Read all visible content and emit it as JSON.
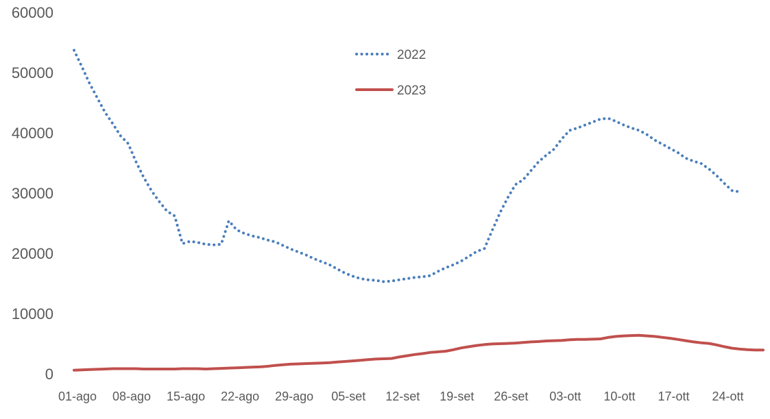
{
  "chart_data": {
    "type": "line",
    "title": "",
    "xlabel": "",
    "ylabel": "",
    "ylim": [
      0,
      60000
    ],
    "yticks": [
      "0",
      "10000",
      "20000",
      "30000",
      "40000",
      "50000",
      "60000"
    ],
    "xticks": [
      "01-ago",
      "08-ago",
      "15-ago",
      "22-ago",
      "29-ago",
      "05-set",
      "12-set",
      "19-set",
      "26-set",
      "03-ott",
      "10-ott",
      "17-ott",
      "24-ott"
    ],
    "grid": false,
    "legend_position": "top-center",
    "x_day_count": 90,
    "series": [
      {
        "name": "2022",
        "style": "dotted",
        "color": "#4a7ebb",
        "values": [
          53700,
          51000,
          48200,
          45800,
          43400,
          41500,
          39500,
          38200,
          35200,
          32600,
          30400,
          28600,
          27000,
          26200,
          21600,
          22000,
          21800,
          21500,
          21400,
          21500,
          25400,
          23900,
          23300,
          22900,
          22600,
          22200,
          21900,
          21300,
          20700,
          20200,
          19700,
          19100,
          18600,
          18100,
          17400,
          16700,
          16200,
          15800,
          15600,
          15500,
          15300,
          15400,
          15600,
          15800,
          16000,
          16100,
          16300,
          17000,
          17600,
          18100,
          18700,
          19500,
          20300,
          20800,
          23800,
          26700,
          29200,
          31400,
          32200,
          33700,
          35200,
          36300,
          37300,
          39000,
          40400,
          40800,
          41300,
          41800,
          42300,
          42400,
          41900,
          41300,
          40800,
          40400,
          39700,
          38800,
          38100,
          37400,
          36700,
          35800,
          35300,
          34900,
          34000,
          32900,
          31600,
          30400,
          30200,
          30200,
          30200,
          30200
        ],
        "plot_days": 87
      },
      {
        "name": "2023",
        "style": "solid",
        "color": "#c0504d",
        "values": [
          600,
          650,
          700,
          750,
          800,
          850,
          850,
          850,
          850,
          800,
          800,
          800,
          800,
          800,
          850,
          850,
          850,
          800,
          850,
          900,
          950,
          1000,
          1050,
          1100,
          1150,
          1250,
          1400,
          1500,
          1600,
          1650,
          1700,
          1750,
          1800,
          1850,
          1950,
          2050,
          2150,
          2250,
          2350,
          2450,
          2500,
          2550,
          2800,
          3000,
          3200,
          3350,
          3550,
          3650,
          3750,
          4000,
          4300,
          4500,
          4700,
          4850,
          4950,
          5000,
          5050,
          5100,
          5200,
          5300,
          5350,
          5450,
          5500,
          5550,
          5650,
          5700,
          5700,
          5750,
          5800,
          6050,
          6200,
          6300,
          6350,
          6400,
          6300,
          6200,
          6050,
          5900,
          5700,
          5500,
          5300,
          5150,
          5050,
          4800,
          4500,
          4250,
          4100,
          4000,
          3950,
          3950
        ],
        "plot_days": 90
      }
    ]
  }
}
